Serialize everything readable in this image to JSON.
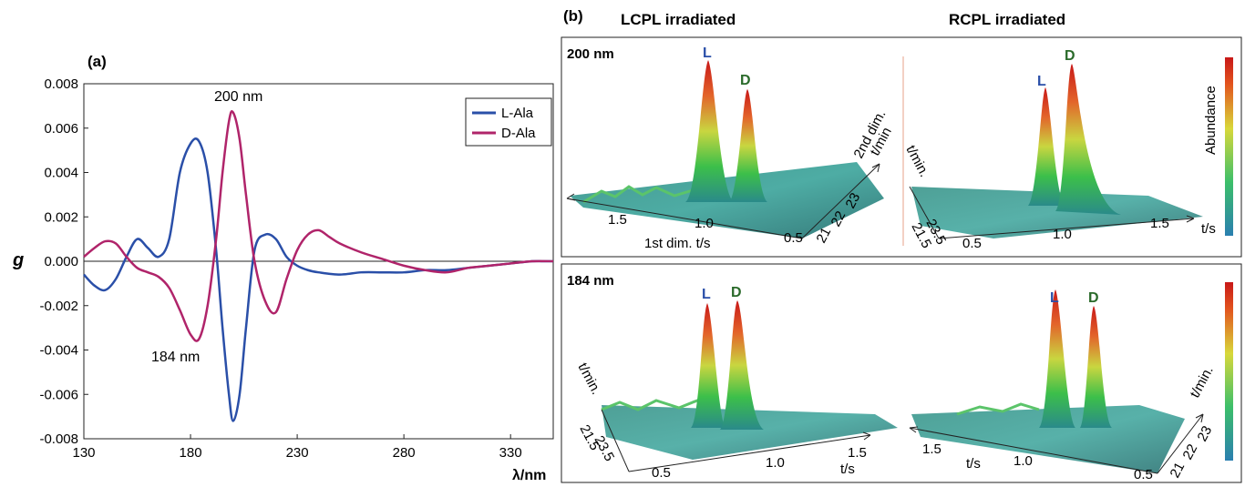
{
  "panel_a": {
    "label": "(a)",
    "ylabel": "g",
    "xlabel": "λ/nm",
    "xticks": [
      "130",
      "180",
      "230",
      "280",
      "330"
    ],
    "yticks": [
      "0.008",
      "0.006",
      "0.004",
      "0.002",
      "0.000",
      "-0.002",
      "-0.004",
      "-0.006",
      "-0.008"
    ],
    "annot_200": "200 nm",
    "annot_184": "184 nm",
    "legend": [
      "L-Ala",
      "D-Ala"
    ]
  },
  "panel_b": {
    "label": "(b)",
    "col_left": "LCPL irradiated",
    "col_right": "RCPL irradiated",
    "row_top": "200 nm",
    "row_bottom": "184 nm",
    "colorbar_label": "Abundance",
    "peak_L": "L",
    "peak_D": "D",
    "tl_xticks": [
      "1.5",
      "1.0",
      "0.5"
    ],
    "tl_yticks": [
      "21",
      "22",
      "23"
    ],
    "tl_xlabel": "1st dim. t/s",
    "tl_ylabel_1": "2nd dim.",
    "tl_ylabel_2": "t/min",
    "tr_xticks": [
      "0.5",
      "1.0",
      "1.5"
    ],
    "tr_yticks": [
      "21.5",
      "23.5"
    ],
    "tr_ylabel": "t/min.",
    "tr_xlabel": "t/s",
    "bl_xticks": [
      "0.5",
      "1.0",
      "1.5"
    ],
    "bl_yticks": [
      "21.5",
      "23.5"
    ],
    "bl_ylabel": "t/min.",
    "bl_xlabel": "t/s",
    "br_xticks": [
      "1.5",
      "1.0",
      "0.5"
    ],
    "br_yticks": [
      "21",
      "22",
      "23"
    ],
    "br_ylabel": "t/min.",
    "br_xlabel": "t/s"
  },
  "colors": {
    "L": "#2a4fa8",
    "D": "#b0246a",
    "peakL": "#2a4fa8",
    "peakD": "#2a6a2a"
  },
  "chart_data": [
    {
      "type": "line",
      "xlabel": "λ/nm",
      "ylabel": "g",
      "xlim": [
        130,
        350
      ],
      "ylim": [
        -0.008,
        0.008
      ],
      "grid": false,
      "legend": "top-right",
      "annotations": [
        {
          "text": "200 nm",
          "x": 200,
          "y": 0.0073
        },
        {
          "text": "184 nm",
          "x": 180,
          "y": -0.0041
        }
      ],
      "series": [
        {
          "name": "L-Ala",
          "color": "#2a4fa8",
          "x": [
            130,
            135,
            140,
            145,
            150,
            155,
            160,
            165,
            170,
            175,
            180,
            184,
            188,
            192,
            195,
            198,
            200,
            203,
            206,
            210,
            215,
            220,
            225,
            230,
            235,
            240,
            250,
            260,
            270,
            280,
            290,
            300,
            310,
            320,
            330,
            340,
            345,
            350
          ],
          "y": [
            -0.0006,
            -0.0011,
            -0.0013,
            -0.0008,
            0.0002,
            0.001,
            0.0006,
            0.0002,
            0.001,
            0.004,
            0.0053,
            0.0054,
            0.004,
            0.0005,
            -0.003,
            -0.006,
            -0.0072,
            -0.006,
            -0.003,
            0.0005,
            0.0012,
            0.001,
            0.0002,
            -0.0002,
            -0.0004,
            -0.0005,
            -0.0006,
            -0.0005,
            -0.0005,
            -0.0005,
            -0.0004,
            -0.0004,
            -0.0003,
            -0.0002,
            -0.0001,
            0.0,
            0.0,
            0.0
          ]
        },
        {
          "name": "D-Ala",
          "color": "#b0246a",
          "x": [
            130,
            135,
            140,
            145,
            150,
            155,
            160,
            165,
            170,
            175,
            180,
            184,
            188,
            192,
            195,
            198,
            200,
            203,
            206,
            210,
            215,
            220,
            225,
            230,
            235,
            240,
            245,
            250,
            260,
            270,
            280,
            290,
            300,
            310,
            320,
            330,
            340,
            350
          ],
          "y": [
            0.0002,
            0.0006,
            0.0009,
            0.0008,
            0.0002,
            -0.0003,
            -0.0005,
            -0.0007,
            -0.0012,
            -0.0022,
            -0.0033,
            -0.0035,
            -0.002,
            0.001,
            0.004,
            0.0063,
            0.0067,
            0.0055,
            0.003,
            0.0,
            -0.0018,
            -0.0023,
            -0.0008,
            0.0005,
            0.0012,
            0.0014,
            0.0011,
            0.0008,
            0.0004,
            0.0001,
            -0.0002,
            -0.0004,
            -0.0005,
            -0.0003,
            -0.0002,
            -0.0001,
            0.0,
            0.0
          ]
        }
      ]
    }
  ]
}
